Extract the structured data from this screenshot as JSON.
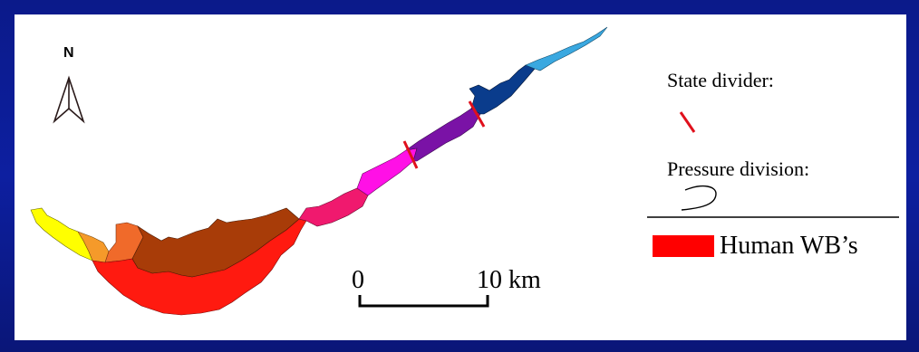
{
  "north": {
    "label": "N",
    "icon": "north-arrow-icon"
  },
  "legend": {
    "state_divider_label": "State divider:",
    "pressure_division_label": "Pressure division:",
    "human_wb_label": "Human WB’s",
    "state_divider_color": "#e0101c",
    "human_wb_color": "#ff0000"
  },
  "scale_bar": {
    "start_label": "0",
    "end_label": "10 km"
  },
  "zones": [
    {
      "name": "yellow-zone",
      "color": "#ffff00"
    },
    {
      "name": "light-orange-zone",
      "color": "#f59a2a"
    },
    {
      "name": "orange-zone",
      "color": "#f06a2a"
    },
    {
      "name": "human-wb-zone",
      "color": "#ff1a10"
    },
    {
      "name": "brown-zone",
      "color": "#a83c08"
    },
    {
      "name": "pink-red-zone",
      "color": "#f0196e"
    },
    {
      "name": "magenta-zone",
      "color": "#ff10e6"
    },
    {
      "name": "purple-zone",
      "color": "#7a12a6"
    },
    {
      "name": "dark-blue-zone",
      "color": "#0a3c8c"
    },
    {
      "name": "light-blue-zone",
      "color": "#3aa8e0"
    }
  ]
}
